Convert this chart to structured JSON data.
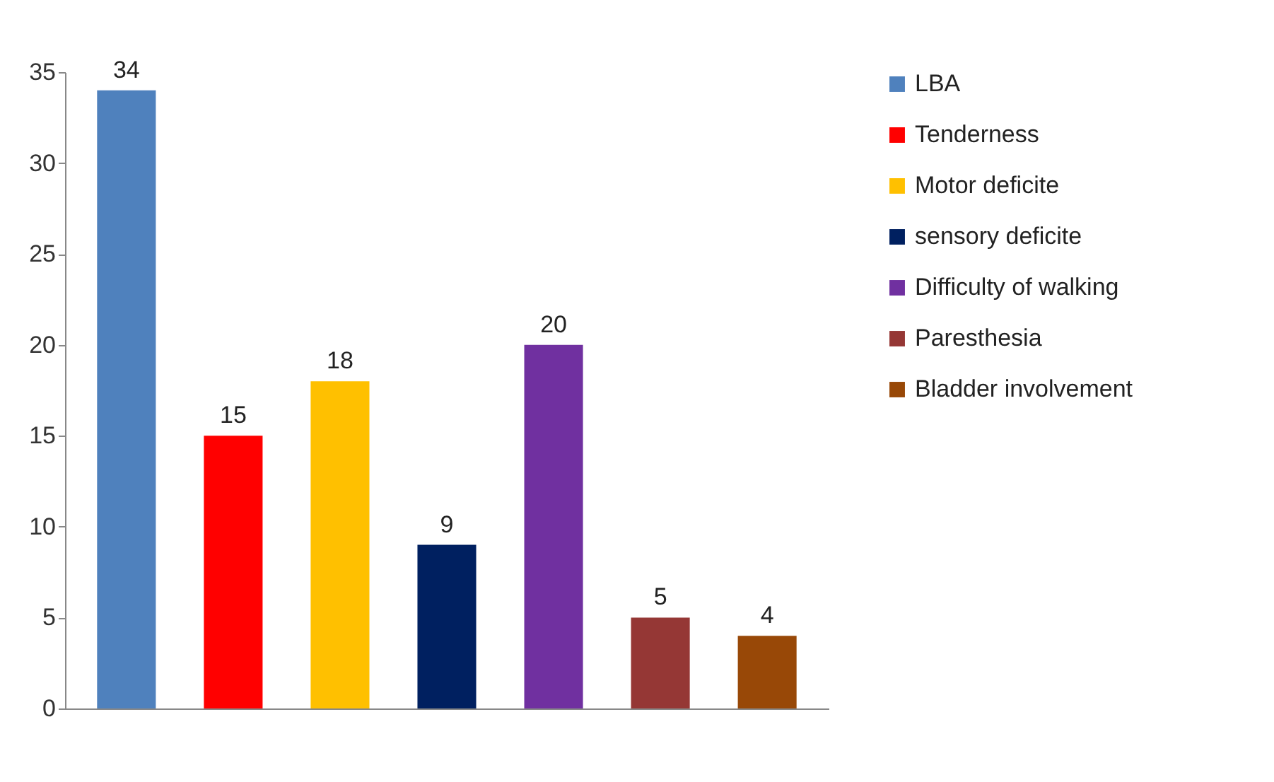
{
  "chart_data": {
    "type": "bar",
    "categories": [
      null,
      null,
      null,
      null,
      null,
      null,
      null
    ],
    "series": [
      {
        "name": "LBA",
        "color": "#4f81bd",
        "values": [
          34,
          null,
          null,
          null,
          null,
          null,
          null
        ]
      },
      {
        "name": "Tenderness",
        "color": "#ff0000",
        "values": [
          null,
          15,
          null,
          null,
          null,
          null,
          null
        ]
      },
      {
        "name": "Motor deficite",
        "color": "#ffc000",
        "values": [
          null,
          null,
          18,
          null,
          null,
          null,
          null
        ]
      },
      {
        "name": "sensory deficite",
        "color": "#002060",
        "values": [
          null,
          null,
          null,
          9,
          null,
          null,
          null
        ]
      },
      {
        "name": "Difficulty of walking",
        "color": "#7030a0",
        "values": [
          null,
          null,
          null,
          null,
          20,
          null,
          null
        ]
      },
      {
        "name": "Paresthesia",
        "color": "#953735",
        "values": [
          null,
          null,
          null,
          null,
          null,
          5,
          null
        ]
      },
      {
        "name": "Bladder involvement",
        "color": "#984807",
        "values": [
          null,
          null,
          null,
          null,
          null,
          null,
          4
        ]
      }
    ],
    "ylim": [
      0,
      35
    ],
    "yticks": [
      0,
      5,
      10,
      15,
      20,
      25,
      30,
      35
    ],
    "data_labels": true,
    "legend": "right",
    "tick_labels": "y"
  }
}
